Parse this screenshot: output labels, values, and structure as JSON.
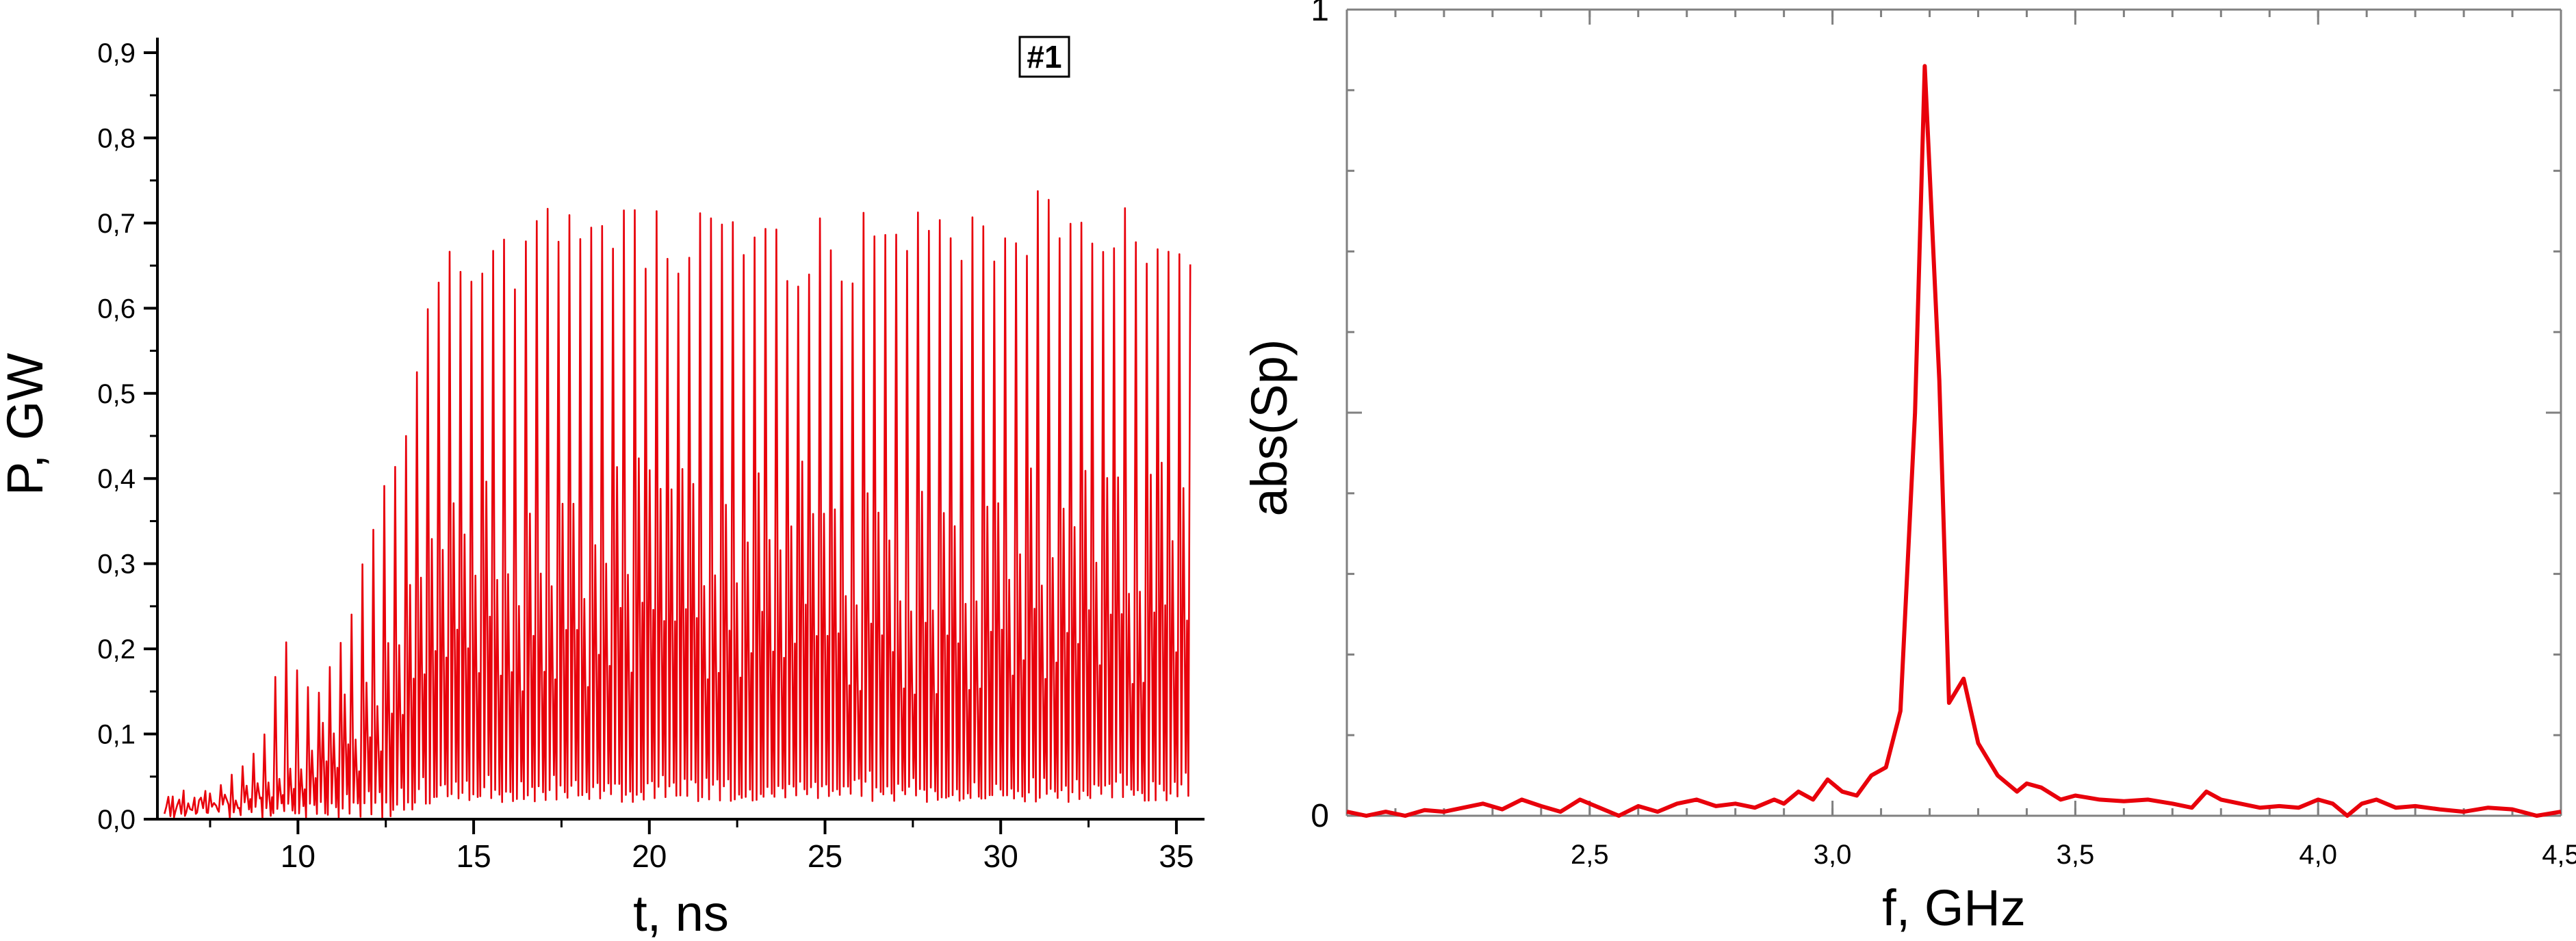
{
  "colors": {
    "series": "#e8000b",
    "axis": "#000000",
    "right_frame": "#808080"
  },
  "chart_data": [
    {
      "type": "line",
      "title": "",
      "xlabel": "t, ns",
      "ylabel": "P, GW",
      "xlim": [
        6.0,
        35.8
      ],
      "ylim": [
        0.0,
        0.9
      ],
      "xticks": [
        {
          "value": 10,
          "label": "10"
        },
        {
          "value": 15,
          "label": "15"
        },
        {
          "value": 20,
          "label": "20"
        },
        {
          "value": 25,
          "label": "25"
        },
        {
          "value": 30,
          "label": "30"
        },
        {
          "value": 35,
          "label": "35"
        }
      ],
      "yticks": [
        {
          "value": 0.0,
          "label": "0,0"
        },
        {
          "value": 0.1,
          "label": "0,1"
        },
        {
          "value": 0.2,
          "label": "0,2"
        },
        {
          "value": 0.3,
          "label": "0,3"
        },
        {
          "value": 0.4,
          "label": "0,4"
        },
        {
          "value": 0.5,
          "label": "0,5"
        },
        {
          "value": 0.6,
          "label": "0,6"
        },
        {
          "value": 0.7,
          "label": "0,7"
        },
        {
          "value": 0.8,
          "label": "0,8"
        },
        {
          "value": 0.9,
          "label": "0,9"
        }
      ],
      "annotation": "#1",
      "grid": false,
      "series": [
        {
          "pulse_period_ns": 0.31,
          "peak_envelope": [
            [
              6.2,
              0.015
            ],
            [
              7.0,
              0.02
            ],
            [
              7.5,
              0.035
            ],
            [
              8.0,
              0.05
            ],
            [
              8.5,
              0.07
            ],
            [
              9.0,
              0.1
            ],
            [
              9.3,
              0.17
            ],
            [
              9.6,
              0.22
            ],
            [
              10.0,
              0.18
            ],
            [
              10.5,
              0.15
            ],
            [
              11.0,
              0.2
            ],
            [
              11.5,
              0.25
            ],
            [
              12.0,
              0.34
            ],
            [
              12.5,
              0.42
            ],
            [
              13.0,
              0.48
            ],
            [
              13.5,
              0.6
            ],
            [
              14.0,
              0.66
            ],
            [
              14.5,
              0.7
            ],
            [
              15.0,
              0.66
            ],
            [
              16.0,
              0.68
            ],
            [
              17.0,
              0.7
            ],
            [
              17.5,
              0.74
            ],
            [
              18.5,
              0.72
            ],
            [
              20.0,
              0.7
            ],
            [
              22.0,
              0.71
            ],
            [
              24.0,
              0.69
            ],
            [
              26.0,
              0.7
            ],
            [
              28.0,
              0.7
            ],
            [
              30.0,
              0.71
            ],
            [
              31.0,
              0.74
            ],
            [
              32.5,
              0.7
            ],
            [
              34.0,
              0.71
            ],
            [
              34.8,
              0.72
            ],
            [
              35.4,
              0.65
            ]
          ],
          "secondary_envelope": [
            [
              6.2,
              0.005
            ],
            [
              9.0,
              0.05
            ],
            [
              10.0,
              0.1
            ],
            [
              11.0,
              0.14
            ],
            [
              12.0,
              0.2
            ],
            [
              13.0,
              0.3
            ],
            [
              14.0,
              0.38
            ],
            [
              15.0,
              0.4
            ],
            [
              17.0,
              0.42
            ],
            [
              20.0,
              0.43
            ],
            [
              25.0,
              0.42
            ],
            [
              30.0,
              0.43
            ],
            [
              35.0,
              0.44
            ],
            [
              35.4,
              0.44
            ]
          ],
          "trough_envelope": [
            [
              6.2,
              0.0
            ],
            [
              12.5,
              0.0
            ],
            [
              14.0,
              0.02
            ],
            [
              35.4,
              0.02
            ]
          ]
        }
      ]
    },
    {
      "type": "line",
      "title": "",
      "xlabel": "f, GHz",
      "ylabel": "abs(Sp)",
      "xlim": [
        2.0,
        4.5
      ],
      "ylim": [
        0.0,
        1.0
      ],
      "xticks": [
        {
          "value": 2.5,
          "label": "2,5"
        },
        {
          "value": 3.0,
          "label": "3,0"
        },
        {
          "value": 3.5,
          "label": "3,5"
        },
        {
          "value": 4.0,
          "label": "4,0"
        },
        {
          "value": 4.5,
          "label": "4,5"
        }
      ],
      "yticks": [
        {
          "value": 0.0,
          "label": "0"
        },
        {
          "value": 0.5,
          "label": ""
        },
        {
          "value": 1.0,
          "label": "1"
        }
      ],
      "grid": false,
      "series": [
        {
          "x": [
            2.0,
            2.04,
            2.08,
            2.12,
            2.16,
            2.2,
            2.24,
            2.28,
            2.32,
            2.36,
            2.4,
            2.44,
            2.48,
            2.52,
            2.56,
            2.6,
            2.64,
            2.68,
            2.72,
            2.76,
            2.8,
            2.84,
            2.88,
            2.9,
            2.93,
            2.96,
            2.99,
            3.02,
            3.05,
            3.08,
            3.11,
            3.14,
            3.17,
            3.19,
            3.22,
            3.24,
            3.27,
            3.3,
            3.34,
            3.38,
            3.4,
            3.43,
            3.47,
            3.5,
            3.55,
            3.6,
            3.65,
            3.7,
            3.74,
            3.77,
            3.8,
            3.84,
            3.88,
            3.92,
            3.96,
            4.0,
            4.03,
            4.06,
            4.09,
            4.12,
            4.16,
            4.2,
            4.25,
            4.3,
            4.35,
            4.4,
            4.45,
            4.5
          ],
          "y": [
            0.005,
            0.0,
            0.005,
            0.0,
            0.007,
            0.005,
            0.01,
            0.015,
            0.008,
            0.02,
            0.012,
            0.005,
            0.02,
            0.01,
            0.0,
            0.012,
            0.005,
            0.015,
            0.02,
            0.012,
            0.015,
            0.01,
            0.02,
            0.015,
            0.03,
            0.02,
            0.045,
            0.03,
            0.025,
            0.05,
            0.06,
            0.13,
            0.5,
            0.93,
            0.54,
            0.14,
            0.17,
            0.09,
            0.05,
            0.03,
            0.04,
            0.035,
            0.02,
            0.025,
            0.02,
            0.018,
            0.02,
            0.015,
            0.01,
            0.03,
            0.02,
            0.015,
            0.01,
            0.012,
            0.01,
            0.02,
            0.015,
            0.0,
            0.015,
            0.02,
            0.01,
            0.012,
            0.008,
            0.005,
            0.01,
            0.008,
            0.0,
            0.005
          ]
        }
      ]
    }
  ]
}
